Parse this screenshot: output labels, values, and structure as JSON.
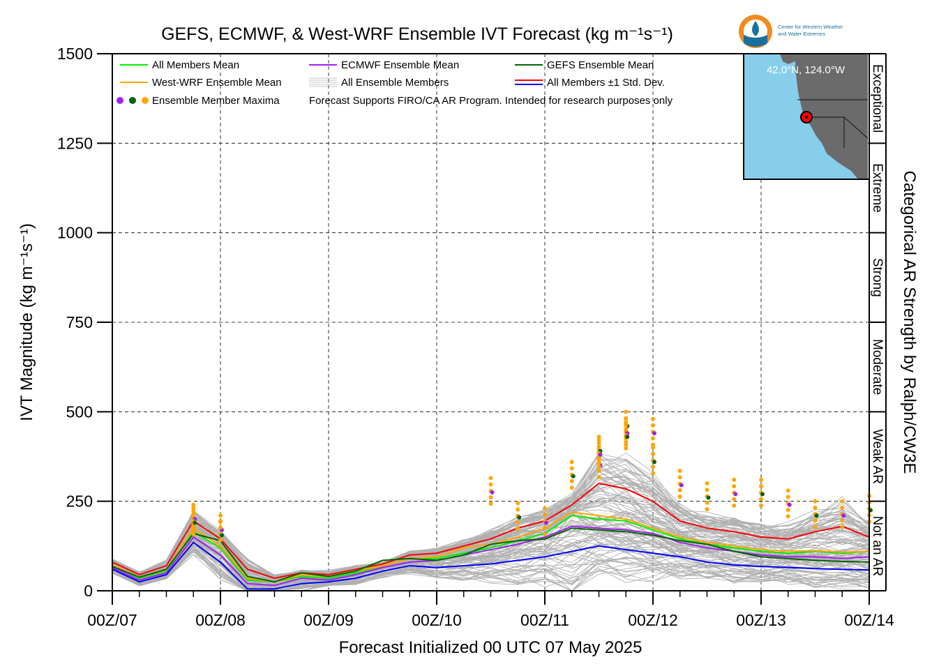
{
  "chart_data": {
    "type": "line",
    "title": "GEFS, ECMWF, & West-WRF Ensemble IVT Forecast (kg m⁻¹s⁻¹)",
    "xlabel": "Forecast Initialized 00 UTC 07 May 2025",
    "ylabel": "IVT Magnitude (kg m⁻¹s⁻¹)",
    "right_label": "Categorical AR Strength by Ralph/CW3E",
    "ylim": [
      0,
      1500
    ],
    "xlim_hours": [
      0,
      168
    ],
    "yticks": [
      0,
      250,
      500,
      750,
      1000,
      1250,
      1500
    ],
    "xtick_labels": [
      "00Z/07",
      "00Z/08",
      "00Z/09",
      "00Z/10",
      "00Z/11",
      "00Z/12",
      "00Z/13",
      "00Z/14"
    ],
    "grid": true,
    "categories": [
      {
        "label": "Not an AR",
        "from": 0,
        "to": 250
      },
      {
        "label": "Weak AR",
        "from": 250,
        "to": 500
      },
      {
        "label": "Moderate",
        "from": 500,
        "to": 750
      },
      {
        "label": "Strong",
        "from": 750,
        "to": 1000
      },
      {
        "label": "Extreme",
        "from": 1000,
        "to": 1250
      },
      {
        "label": "Exceptional",
        "from": 1250,
        "to": 1500
      }
    ],
    "legend": {
      "placement": "top-left",
      "items": [
        {
          "label": "All Members Mean",
          "color": "#00ee00",
          "kind": "line"
        },
        {
          "label": "ECMWF Ensemble Mean",
          "color": "#a020f0",
          "kind": "line"
        },
        {
          "label": "GEFS Ensemble Mean",
          "color": "#006400",
          "kind": "line"
        },
        {
          "label": "West-WRF Ensemble Mean",
          "color": "#ffa500",
          "kind": "line"
        },
        {
          "label": "All Ensemble Members",
          "color": "#b0b0b0",
          "kind": "multiline"
        },
        {
          "label": "All Members ±1 Std. Dev.",
          "color": "#ff0000",
          "color2": "#0000ff",
          "kind": "double"
        },
        {
          "label": "Ensemble Member Maxima",
          "kind": "dots",
          "colors": [
            "#a020f0",
            "#006400",
            "#ffa500"
          ]
        }
      ],
      "note": "Forecast Supports FIRO/CA AR Program. Intended for research purposes only"
    },
    "series": [
      {
        "name": "All Members ±1 Std. Dev.",
        "color": "#ff0000",
        "x": [
          0,
          6,
          12,
          18,
          24,
          30,
          36,
          42,
          48,
          54,
          60,
          66,
          72,
          78,
          84,
          90,
          96,
          102,
          108,
          114,
          120,
          126,
          132,
          138,
          144,
          150,
          156,
          162,
          168
        ],
        "y": [
          80,
          45,
          70,
          195,
          145,
          60,
          35,
          50,
          45,
          60,
          75,
          100,
          105,
          125,
          145,
          175,
          195,
          240,
          300,
          285,
          250,
          195,
          175,
          165,
          150,
          145,
          165,
          180,
          150
        ]
      },
      {
        "name": "All Members Mean",
        "color": "#00ee00",
        "x": [
          0,
          6,
          12,
          18,
          24,
          30,
          36,
          42,
          48,
          54,
          60,
          66,
          72,
          78,
          84,
          90,
          96,
          102,
          108,
          114,
          120,
          126,
          132,
          138,
          144,
          150,
          156,
          162,
          168
        ],
        "y": [
          70,
          35,
          55,
          165,
          120,
          30,
          25,
          40,
          35,
          50,
          70,
          90,
          90,
          105,
          120,
          140,
          160,
          210,
          200,
          195,
          170,
          145,
          130,
          120,
          110,
          105,
          110,
          105,
          110
        ]
      },
      {
        "name": "West-WRF Ensemble Mean",
        "color": "#ffa500",
        "x": [
          0,
          6,
          12,
          18,
          24,
          30,
          36,
          42,
          48,
          54,
          60,
          66,
          72,
          78,
          84,
          90,
          96,
          102,
          108,
          114,
          120,
          126,
          132,
          138,
          144,
          150,
          156,
          162,
          168
        ],
        "y": [
          72,
          38,
          58,
          175,
          125,
          35,
          25,
          45,
          40,
          55,
          70,
          90,
          95,
          120,
          130,
          150,
          175,
          220,
          210,
          200,
          175,
          150,
          135,
          125,
          115,
          110,
          112,
          108,
          110
        ]
      },
      {
        "name": "ECMWF Ensemble Mean",
        "color": "#a020f0",
        "x": [
          0,
          6,
          12,
          18,
          24,
          30,
          36,
          42,
          48,
          54,
          60,
          66,
          72,
          78,
          84,
          90,
          96,
          102,
          108,
          114,
          120,
          126,
          132,
          138,
          144,
          150,
          156,
          162,
          168
        ],
        "y": [
          65,
          30,
          50,
          150,
          100,
          20,
          15,
          35,
          30,
          45,
          65,
          80,
          85,
          100,
          115,
          130,
          150,
          180,
          175,
          170,
          160,
          135,
          120,
          110,
          100,
          95,
          95,
          90,
          95
        ]
      },
      {
        "name": "GEFS Ensemble Mean",
        "color": "#006400",
        "x": [
          0,
          6,
          12,
          18,
          24,
          30,
          36,
          42,
          48,
          54,
          60,
          66,
          72,
          78,
          84,
          90,
          96,
          102,
          108,
          114,
          120,
          126,
          132,
          138,
          144,
          150,
          156,
          162,
          168
        ],
        "y": [
          68,
          38,
          60,
          160,
          140,
          40,
          25,
          50,
          40,
          55,
          85,
          90,
          85,
          100,
          130,
          140,
          145,
          175,
          170,
          165,
          155,
          140,
          130,
          110,
          95,
          90,
          85,
          82,
          80
        ]
      },
      {
        "name": "All Members ±1 Std. Dev.",
        "color": "#0000ff",
        "x": [
          0,
          6,
          12,
          18,
          24,
          30,
          36,
          42,
          48,
          54,
          60,
          66,
          72,
          78,
          84,
          90,
          96,
          102,
          108,
          114,
          120,
          126,
          132,
          138,
          144,
          150,
          156,
          162,
          168
        ],
        "y": [
          60,
          25,
          45,
          135,
          80,
          5,
          5,
          20,
          25,
          35,
          55,
          70,
          65,
          70,
          75,
          85,
          95,
          110,
          125,
          115,
          105,
          95,
          80,
          72,
          68,
          65,
          62,
          60,
          58
        ]
      }
    ],
    "maxima": {
      "x": [
        18,
        18,
        24,
        24,
        84,
        90,
        96,
        102,
        108,
        108,
        108,
        114,
        114,
        114,
        120,
        120,
        126,
        132,
        138,
        144,
        150,
        156,
        162,
        168
      ],
      "y": [
        240,
        230,
        210,
        195,
        315,
        245,
        230,
        360,
        390,
        430,
        420,
        500,
        480,
        470,
        480,
        400,
        335,
        300,
        310,
        310,
        280,
        250,
        250,
        265
      ]
    },
    "map": {
      "label": "42.0°N, 124.0°W",
      "land_color": "#6b6b6b",
      "water_color": "#87ceeb",
      "marker_color": "#ff0000"
    },
    "logo": {
      "line1": "Center for Western Weather",
      "line2": "and Water Extremes"
    }
  }
}
